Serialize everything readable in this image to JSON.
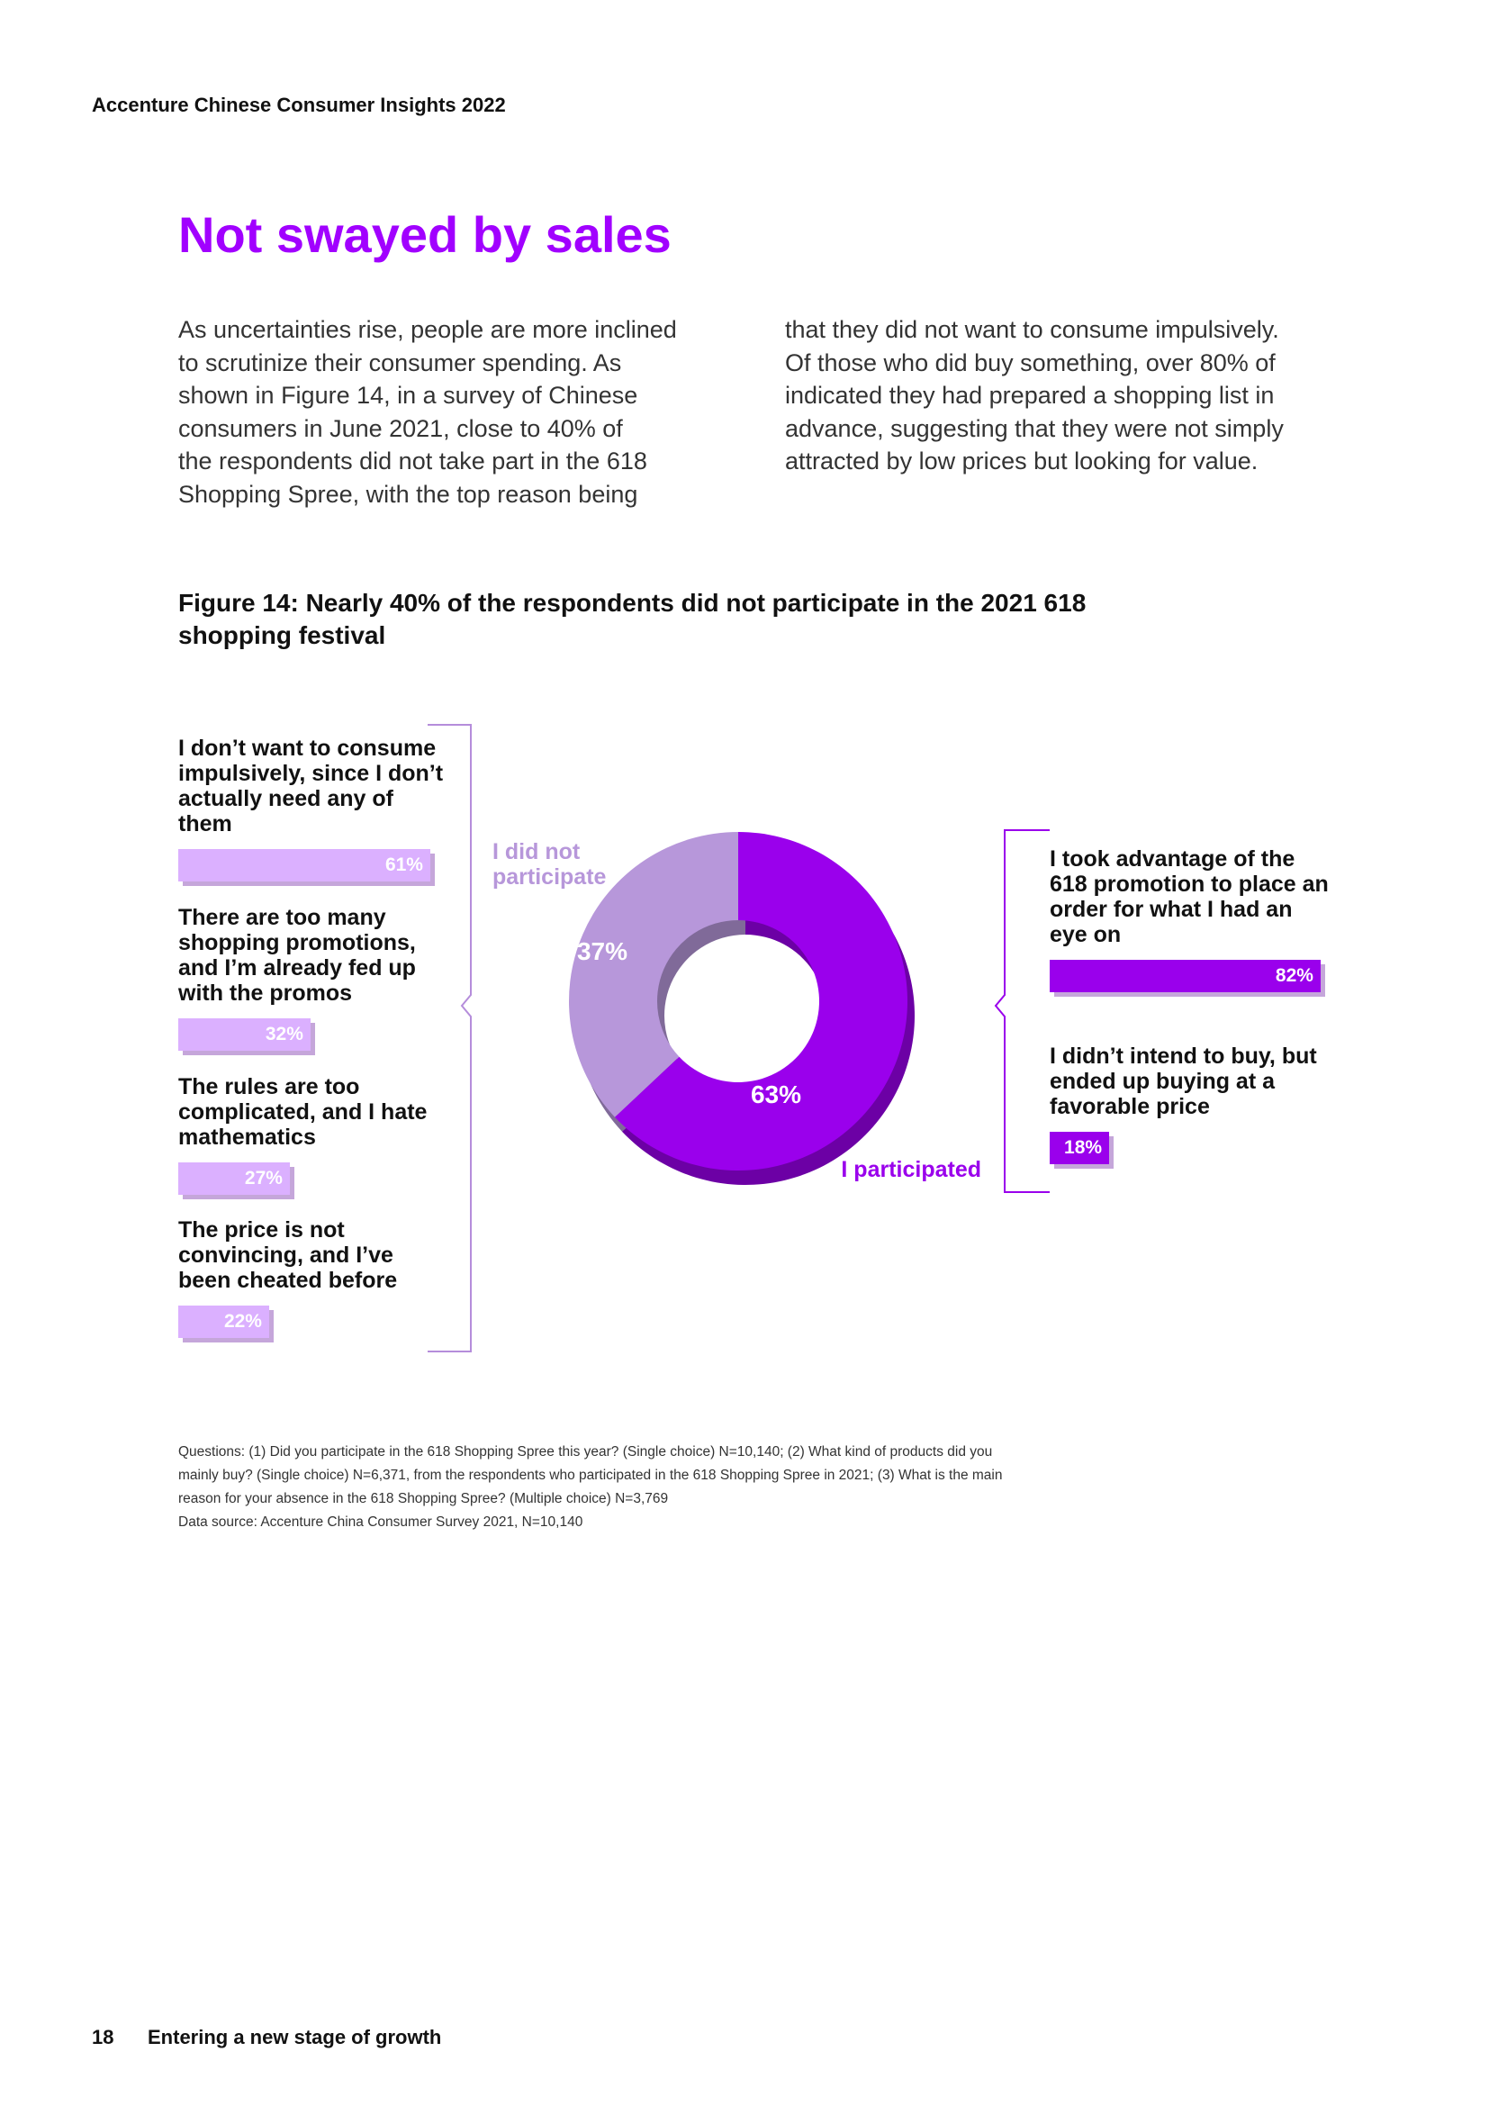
{
  "header": "Accenture Chinese Consumer Insights 2022",
  "title": "Not swayed by sales",
  "body": {
    "left": [
      "As uncertainties rise, people are more inclined",
      "to scrutinize their consumer spending. As",
      "shown in Figure 14, in a survey of Chinese",
      "consumers in June 2021, close to 40% of",
      "the respondents did not take part in the 618",
      "Shopping Spree, with the top reason being"
    ],
    "right": [
      "that they did not want to consume impulsively.",
      "Of those who did buy something, over 80% of",
      "indicated they had prepared a shopping list in",
      "advance, suggesting that they were not simply",
      "attracted by low prices but looking for value."
    ]
  },
  "figure_title": [
    "Figure 14: Nearly 40% of the respondents did not participate in the 2021 618",
    "shopping festival"
  ],
  "chart_data": [
    {
      "type": "pie",
      "categories": [
        "I did not participate",
        "I participated"
      ],
      "values": [
        37,
        63
      ],
      "value_labels": [
        "37%",
        "63%"
      ],
      "colors": [
        "#b797da",
        "#9a00ec"
      ]
    },
    {
      "type": "bar",
      "categories": [
        "I don’t want to consume impulsively, since I don’t actually need any of them",
        "There are too many shopping promotions, and I’m already fed up with the promos",
        "The rules are too complicated, and I hate mathematics",
        "The price is not convincing, and I’ve been cheated before"
      ],
      "values": [
        61,
        32,
        27,
        22
      ],
      "value_labels": [
        "61%",
        "32%",
        "27%",
        "22%"
      ],
      "color": "#dbb0ff"
    },
    {
      "type": "bar",
      "categories": [
        "I took advantage of the 618 promotion to place an order for what I had an eye on",
        "I didn’t intend to buy, but ended up buying at a favorable price"
      ],
      "values": [
        82,
        18
      ],
      "value_labels": [
        "82%",
        "18%"
      ],
      "color": "#9a00ec"
    }
  ],
  "notes": [
    "Questions: (1) Did you participate in the 618 Shopping Spree this year? (Single choice) N=10,140; (2) What kind of products did you",
    "mainly buy? (Single choice) N=6,371, from the respondents who participated in the 618 Shopping Spree in 2021; (3) What is the main",
    "reason for your absence in the 618 Shopping Spree? (Multiple choice) N=3,769",
    "Data source: Accenture China Consumer Survey 2021, N=10,140"
  ],
  "footer": {
    "page": "18",
    "section": "Entering a new stage of growth"
  }
}
